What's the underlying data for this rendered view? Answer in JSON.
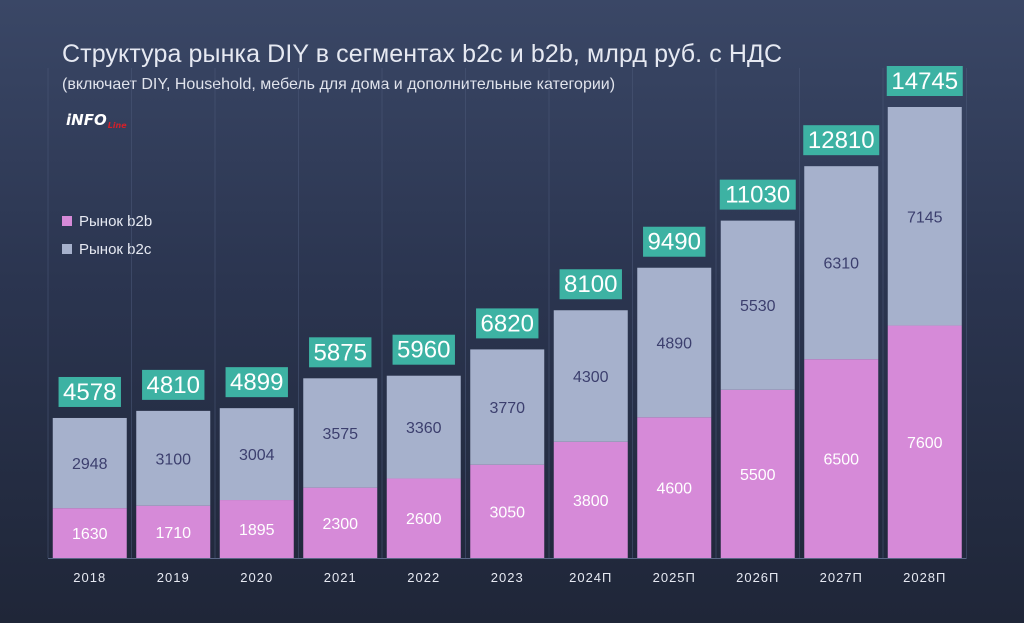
{
  "chart_data": {
    "type": "bar",
    "stacked": true,
    "title": "Структура рынка DIY в сегментах b2c и b2b, млрд руб. с НДС",
    "subtitle": "(включает DIY, Household, мебель для дома и дополнительные категории)",
    "categories": [
      "2018",
      "2019",
      "2020",
      "2021",
      "2022",
      "2023",
      "2024П",
      "2025П",
      "2026П",
      "2027П",
      "2028П"
    ],
    "series": [
      {
        "name": "Рынок b2b",
        "color": "#d68ad8",
        "values": [
          1630,
          1710,
          1895,
          2300,
          2600,
          3050,
          3800,
          4600,
          5500,
          6500,
          7600
        ]
      },
      {
        "name": "Рынок b2c",
        "color": "#a6b1cc",
        "values": [
          2948,
          3100,
          3004,
          3575,
          3360,
          3770,
          4300,
          4890,
          5530,
          6310,
          7145
        ]
      }
    ],
    "totals": [
      "4578",
      "4810",
      "4899",
      "5875",
      "5960",
      "6820",
      "8100",
      "9490",
      "11030",
      "12810",
      "14745"
    ],
    "legend_position": "left-middle",
    "ylim": [
      0,
      16000
    ]
  },
  "brand": {
    "logo_main": "iNFO",
    "logo_sub": "Line"
  },
  "colors": {
    "total_label_bg": "#3db2a3",
    "total_label_text": "#ffffff",
    "b2c_value_text": "#3c3f6e",
    "b2b_value_text": "#ffffff"
  }
}
